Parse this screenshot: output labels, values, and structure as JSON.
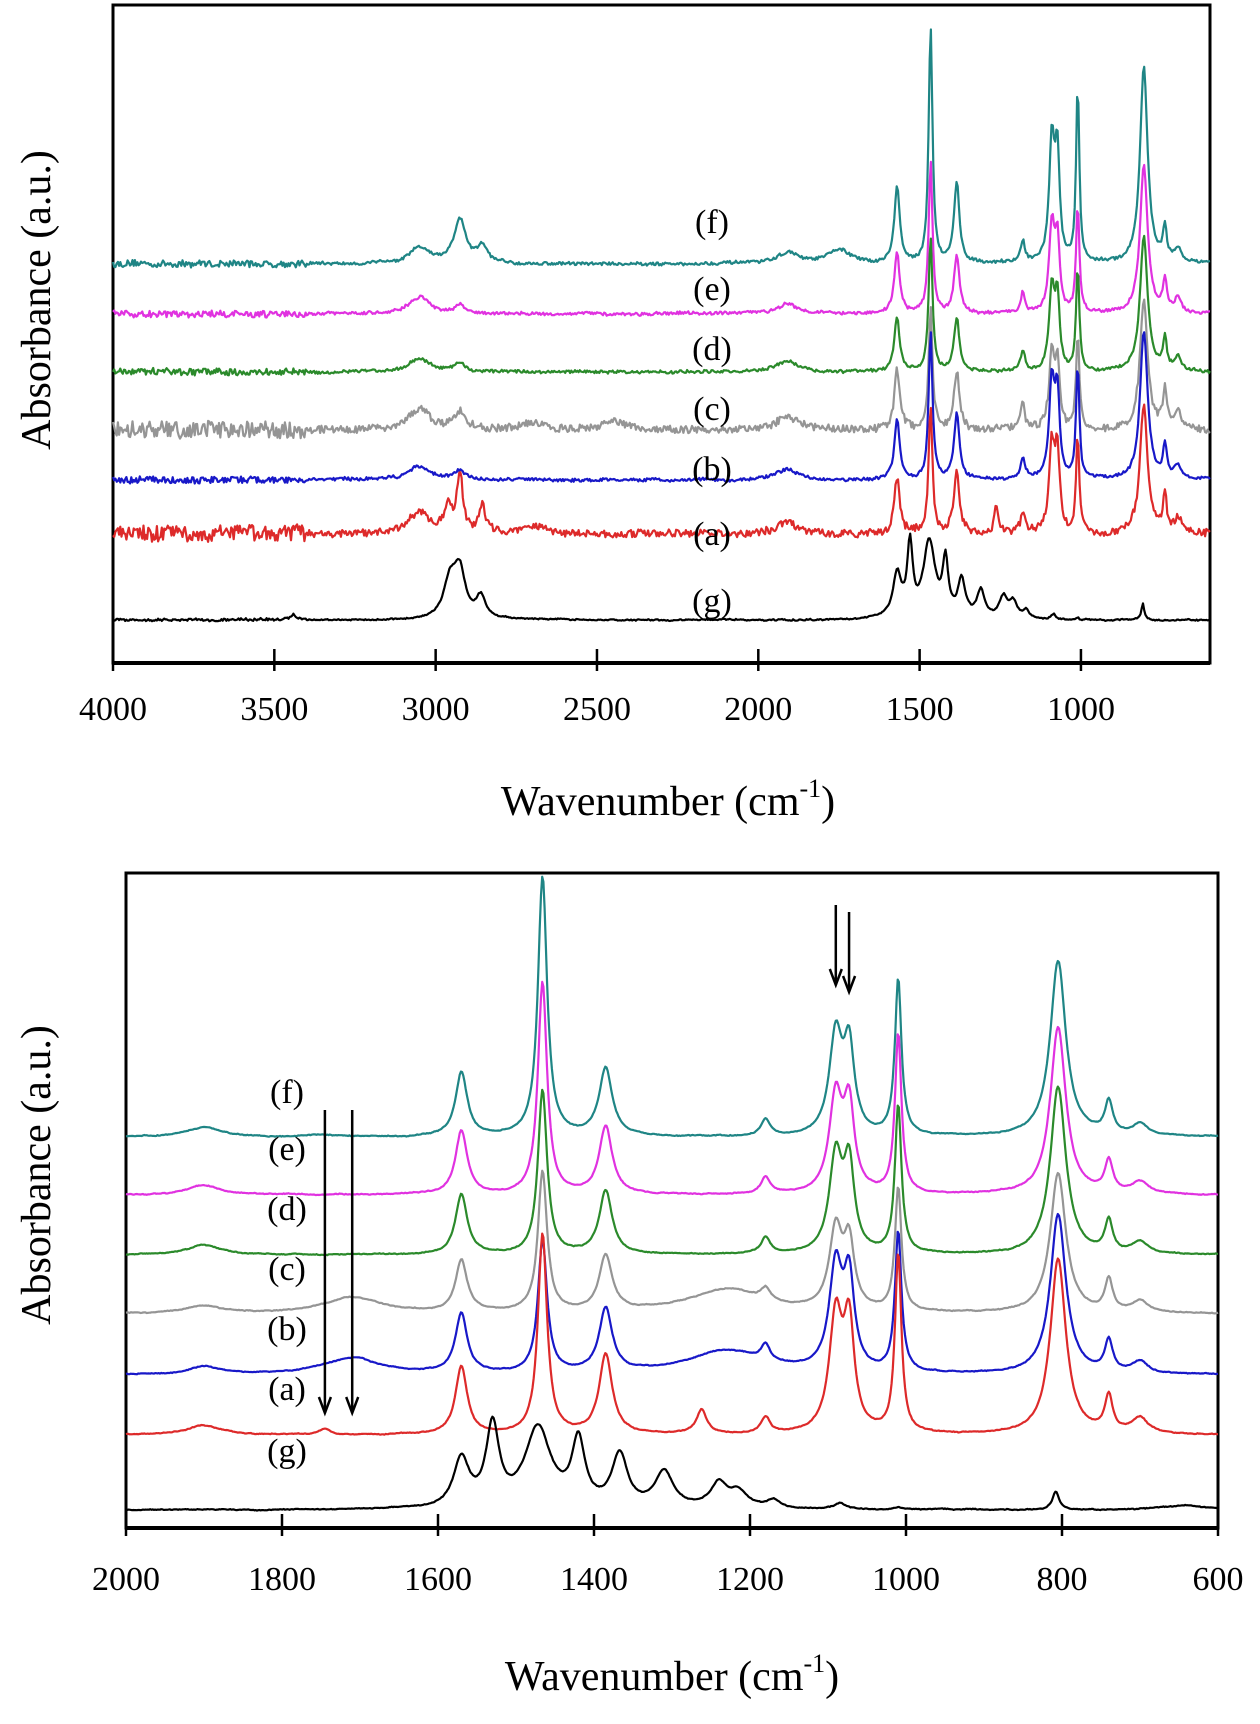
{
  "chart_data": [
    {
      "type": "line",
      "panel": "top",
      "title": "",
      "xlabel": "Wavenumber (cm-1)",
      "xlabel_main": "Wavenumber (cm",
      "xlabel_sup": "-1",
      "xlabel_close": ")",
      "ylabel": "Absorbance (a.u.)",
      "xlim": [
        4000,
        600
      ],
      "x_ticks": [
        4000,
        3500,
        3000,
        2500,
        2000,
        1500,
        1000
      ],
      "x_tick_labels": [
        "4000",
        "3500",
        "3000",
        "2500",
        "2000",
        "1500",
        "1000"
      ],
      "y_ticks": [],
      "grid": false,
      "legend": "inline-labels",
      "series": [
        {
          "name": "(f)",
          "color": "#1f8585",
          "offset": 6,
          "noise": 0.55,
          "peaks": [
            [
              3050,
              6,
              40
            ],
            [
              2925,
              16,
              22
            ],
            [
              2855,
              6,
              18
            ],
            [
              1908,
              4,
              40
            ],
            [
              1750,
              5,
              40
            ],
            [
              1570,
              28,
              10
            ],
            [
              1466,
              88,
              7
            ],
            [
              1385,
              30,
              10
            ],
            [
              1180,
              8,
              8
            ],
            [
              1090,
              45,
              10
            ],
            [
              1073,
              38,
              8
            ],
            [
              1010,
              65,
              6
            ],
            [
              805,
              73,
              14
            ],
            [
              740,
              12,
              7
            ],
            [
              700,
              5,
              12
            ]
          ]
        },
        {
          "name": "(e)",
          "color": "#e032e0",
          "offset": 5,
          "noise": 0.55,
          "peaks": [
            [
              3050,
              6,
              40
            ],
            [
              2925,
              3,
              20
            ],
            [
              1908,
              4,
              40
            ],
            [
              1570,
              22,
              10
            ],
            [
              1466,
              56,
              7
            ],
            [
              1385,
              22,
              10
            ],
            [
              1180,
              8,
              8
            ],
            [
              1090,
              32,
              10
            ],
            [
              1073,
              26,
              8
            ],
            [
              1010,
              40,
              6
            ],
            [
              805,
              55,
              14
            ],
            [
              740,
              12,
              7
            ],
            [
              700,
              5,
              12
            ]
          ]
        },
        {
          "name": "(d)",
          "color": "#2b8a2b",
          "offset": 4,
          "noise": 0.55,
          "peaks": [
            [
              3050,
              5,
              40
            ],
            [
              2925,
              3,
              20
            ],
            [
              1908,
              4,
              40
            ],
            [
              1570,
              20,
              10
            ],
            [
              1466,
              50,
              7
            ],
            [
              1385,
              20,
              10
            ],
            [
              1180,
              8,
              8
            ],
            [
              1090,
              30,
              10
            ],
            [
              1073,
              26,
              8
            ],
            [
              1010,
              38,
              6
            ],
            [
              805,
              50,
              14
            ],
            [
              740,
              12,
              7
            ],
            [
              700,
              5,
              12
            ]
          ]
        },
        {
          "name": "(c)",
          "color": "#959595",
          "offset": 3,
          "noise": 1.4,
          "peaks": [
            [
              3050,
              8,
              40
            ],
            [
              2925,
              6,
              20
            ],
            [
              2700,
              3,
              40
            ],
            [
              2450,
              3,
              40
            ],
            [
              1908,
              5,
              40
            ],
            [
              1570,
              22,
              10
            ],
            [
              1466,
              45,
              7
            ],
            [
              1385,
              22,
              10
            ],
            [
              1180,
              9,
              8
            ],
            [
              1090,
              28,
              10
            ],
            [
              1073,
              22,
              8
            ],
            [
              1010,
              36,
              6
            ],
            [
              805,
              48,
              14
            ],
            [
              740,
              14,
              7
            ],
            [
              700,
              6,
              12
            ]
          ]
        },
        {
          "name": "(b)",
          "color": "#1818c8",
          "offset": 2,
          "noise": 0.55,
          "peaks": [
            [
              3050,
              5,
              40
            ],
            [
              2925,
              3,
              20
            ],
            [
              1908,
              4,
              40
            ],
            [
              1570,
              22,
              10
            ],
            [
              1466,
              55,
              7
            ],
            [
              1385,
              24,
              10
            ],
            [
              1180,
              8,
              8
            ],
            [
              1090,
              36,
              10
            ],
            [
              1073,
              30,
              8
            ],
            [
              1010,
              42,
              6
            ],
            [
              805,
              55,
              14
            ],
            [
              740,
              12,
              7
            ],
            [
              700,
              5,
              12
            ]
          ]
        },
        {
          "name": "(a)",
          "color": "#dd2a2a",
          "offset": 1,
          "noise": 1.4,
          "peaks": [
            [
              3050,
              8,
              40
            ],
            [
              2960,
              9,
              15
            ],
            [
              2925,
              22,
              10
            ],
            [
              2855,
              10,
              12
            ],
            [
              2700,
              3,
              40
            ],
            [
              1908,
              4,
              40
            ],
            [
              1570,
              20,
              10
            ],
            [
              1466,
              48,
              7
            ],
            [
              1385,
              24,
              10
            ],
            [
              1262,
              10,
              8
            ],
            [
              1180,
              8,
              8
            ],
            [
              1090,
              32,
              10
            ],
            [
              1073,
              28,
              8
            ],
            [
              1010,
              36,
              6
            ],
            [
              805,
              48,
              14
            ],
            [
              740,
              14,
              7
            ],
            [
              700,
              6,
              12
            ]
          ]
        },
        {
          "name": "(g)",
          "color": "#000000",
          "offset": 0,
          "noise": 0.2,
          "peaks": [
            [
              3440,
              2,
              15
            ],
            [
              2955,
              14,
              25
            ],
            [
              2925,
              16,
              20
            ],
            [
              2860,
              8,
              18
            ],
            [
              1570,
              16,
              15
            ],
            [
              1530,
              26,
              10
            ],
            [
              1470,
              28,
              22
            ],
            [
              1420,
              20,
              10
            ],
            [
              1370,
              14,
              14
            ],
            [
              1310,
              10,
              14
            ],
            [
              1240,
              8,
              15
            ],
            [
              1210,
              6,
              14
            ],
            [
              1170,
              3,
              10
            ],
            [
              1085,
              2,
              8
            ],
            [
              1010,
              1,
              6
            ],
            [
              808,
              6,
              5
            ]
          ]
        }
      ],
      "annotations": []
    },
    {
      "type": "line",
      "panel": "bottom",
      "title": "",
      "xlabel": "Wavenumber (cm-1)",
      "xlabel_main": "Wavenumber (cm",
      "xlabel_sup": "-1",
      "xlabel_close": ")",
      "ylabel": "Absorbance (a.u.)",
      "xlim": [
        2000,
        600
      ],
      "x_ticks": [
        2000,
        1800,
        1600,
        1400,
        1200,
        1000,
        800,
        600
      ],
      "x_tick_labels": [
        "2000",
        "1800",
        "1600",
        "1400",
        "1200",
        "1000",
        "800",
        "600"
      ],
      "y_ticks": [],
      "grid": false,
      "legend": "inline-labels",
      "series": [
        {
          "name": "(f)",
          "color": "#1f8585",
          "offset": 6,
          "peaks": [
            [
              1900,
              5,
              25
            ],
            [
              1750,
              1,
              20
            ],
            [
              1570,
              32,
              9
            ],
            [
              1466,
              130,
              7
            ],
            [
              1385,
              34,
              10
            ],
            [
              1180,
              8,
              7
            ],
            [
              1090,
              50,
              10
            ],
            [
              1073,
              42,
              8
            ],
            [
              1010,
              78,
              5
            ],
            [
              805,
              88,
              12
            ],
            [
              740,
              16,
              6
            ],
            [
              700,
              6,
              12
            ]
          ]
        },
        {
          "name": "(e)",
          "color": "#e032e0",
          "offset": 5,
          "peaks": [
            [
              1900,
              5,
              25
            ],
            [
              1570,
              32,
              9
            ],
            [
              1466,
              106,
              7
            ],
            [
              1385,
              34,
              10
            ],
            [
              1180,
              8,
              7
            ],
            [
              1090,
              48,
              10
            ],
            [
              1073,
              42,
              8
            ],
            [
              1010,
              80,
              5
            ],
            [
              805,
              84,
              12
            ],
            [
              740,
              16,
              6
            ],
            [
              700,
              6,
              12
            ]
          ]
        },
        {
          "name": "(d)",
          "color": "#2b8a2b",
          "offset": 4,
          "peaks": [
            [
              1900,
              5,
              25
            ],
            [
              1570,
              30,
              9
            ],
            [
              1466,
              82,
              7
            ],
            [
              1385,
              32,
              10
            ],
            [
              1180,
              8,
              7
            ],
            [
              1090,
              48,
              10
            ],
            [
              1073,
              42,
              8
            ],
            [
              1010,
              74,
              5
            ],
            [
              805,
              84,
              12
            ],
            [
              740,
              16,
              6
            ],
            [
              700,
              6,
              12
            ]
          ]
        },
        {
          "name": "(c)",
          "color": "#959595",
          "offset": 3,
          "peaks": [
            [
              1900,
              4,
              25
            ],
            [
              1710,
              8,
              45
            ],
            [
              1570,
              26,
              9
            ],
            [
              1466,
              70,
              7
            ],
            [
              1385,
              28,
              10
            ],
            [
              1230,
              12,
              60
            ],
            [
              1180,
              6,
              7
            ],
            [
              1090,
              40,
              10
            ],
            [
              1073,
              32,
              8
            ],
            [
              1010,
              62,
              5
            ],
            [
              805,
              70,
              12
            ],
            [
              740,
              16,
              6
            ],
            [
              700,
              6,
              12
            ]
          ]
        },
        {
          "name": "(b)",
          "color": "#1818c8",
          "offset": 2,
          "peaks": [
            [
              1900,
              4,
              25
            ],
            [
              1710,
              8,
              45
            ],
            [
              1570,
              30,
              9
            ],
            [
              1466,
              66,
              7
            ],
            [
              1385,
              32,
              10
            ],
            [
              1230,
              12,
              60
            ],
            [
              1180,
              8,
              7
            ],
            [
              1090,
              52,
              10
            ],
            [
              1073,
              44,
              8
            ],
            [
              1010,
              70,
              5
            ],
            [
              805,
              80,
              12
            ],
            [
              740,
              16,
              6
            ],
            [
              700,
              6,
              12
            ]
          ]
        },
        {
          "name": "(a)",
          "color": "#dd2a2a",
          "offset": 1,
          "peaks": [
            [
              1900,
              5,
              25
            ],
            [
              1745,
              3,
              8
            ],
            [
              1570,
              34,
              9
            ],
            [
              1466,
              100,
              7
            ],
            [
              1385,
              40,
              10
            ],
            [
              1262,
              12,
              8
            ],
            [
              1180,
              8,
              7
            ],
            [
              1090,
              58,
              10
            ],
            [
              1073,
              52,
              8
            ],
            [
              1010,
              90,
              5
            ],
            [
              805,
              88,
              12
            ],
            [
              740,
              18,
              6
            ],
            [
              700,
              8,
              12
            ]
          ]
        },
        {
          "name": "(g)",
          "color": "#000000",
          "offset": 0,
          "peaks": [
            [
              1570,
              24,
              12
            ],
            [
              1530,
              40,
              10
            ],
            [
              1472,
              40,
              20
            ],
            [
              1420,
              32,
              10
            ],
            [
              1367,
              26,
              12
            ],
            [
              1310,
              18,
              14
            ],
            [
              1240,
              12,
              13
            ],
            [
              1215,
              8,
              14
            ],
            [
              1170,
              4,
              10
            ],
            [
              1085,
              3,
              8
            ],
            [
              1010,
              1,
              6
            ],
            [
              808,
              9,
              5
            ],
            [
              640,
              2,
              40
            ]
          ]
        }
      ],
      "annotations": [
        {
          "type": "arrow",
          "x": 1745,
          "direction": "down",
          "label": ""
        },
        {
          "type": "arrow",
          "x": 1710,
          "direction": "down",
          "label": ""
        },
        {
          "type": "arrow",
          "x": 1090,
          "direction": "down",
          "label": ""
        },
        {
          "type": "arrow",
          "x": 1073,
          "direction": "down",
          "label": ""
        }
      ]
    }
  ]
}
